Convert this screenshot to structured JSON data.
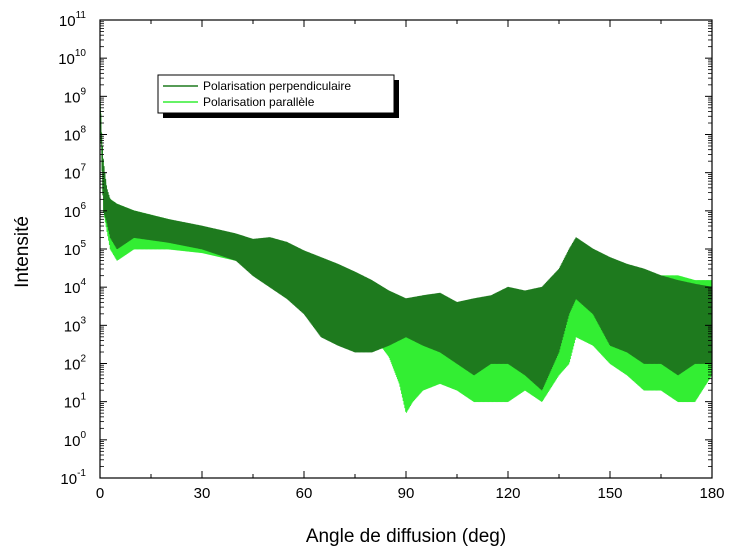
{
  "colors": {
    "perpendicular": "#1e7a1e",
    "parallel": "#33ee33",
    "axis": "#000000",
    "background": "#ffffff"
  },
  "chart_data": {
    "type": "line",
    "title": "",
    "xlabel": "Angle de diffusion (deg)",
    "ylabel": "Intensité",
    "xlim": [
      0,
      180
    ],
    "ylim": [
      0.1,
      100000000000
    ],
    "yscale": "log",
    "grid": false,
    "legend_position": "top-left",
    "x_ticks": [
      {
        "value": 0,
        "label": "0"
      },
      {
        "value": 30,
        "label": "30"
      },
      {
        "value": 60,
        "label": "60"
      },
      {
        "value": 90,
        "label": "90"
      },
      {
        "value": 120,
        "label": "120"
      },
      {
        "value": 150,
        "label": "150"
      },
      {
        "value": 180,
        "label": "180"
      }
    ],
    "y_ticks": [
      {
        "value": 0.1,
        "base": "10",
        "exp": "-1"
      },
      {
        "value": 1,
        "base": "10",
        "exp": "0"
      },
      {
        "value": 10,
        "base": "10",
        "exp": "1"
      },
      {
        "value": 100,
        "base": "10",
        "exp": "2"
      },
      {
        "value": 1000,
        "base": "10",
        "exp": "3"
      },
      {
        "value": 10000,
        "base": "10",
        "exp": "4"
      },
      {
        "value": 100000,
        "base": "10",
        "exp": "5"
      },
      {
        "value": 1000000,
        "base": "10",
        "exp": "6"
      },
      {
        "value": 10000000,
        "base": "10",
        "exp": "7"
      },
      {
        "value": 100000000,
        "base": "10",
        "exp": "8"
      },
      {
        "value": 1000000000,
        "base": "10",
        "exp": "9"
      },
      {
        "value": 10000000000,
        "base": "10",
        "exp": "10"
      },
      {
        "value": 100000000000,
        "base": "10",
        "exp": "11"
      }
    ],
    "series": [
      {
        "name": "Polarisation perpendiculaire",
        "color": "#1e7a1e",
        "x": [
          0,
          0.5,
          1,
          2,
          3,
          5,
          10,
          20,
          30,
          40,
          45,
          50,
          55,
          60,
          65,
          70,
          75,
          80,
          85,
          90,
          95,
          100,
          105,
          110,
          115,
          120,
          125,
          130,
          135,
          138,
          140,
          145,
          150,
          155,
          160,
          165,
          170,
          175,
          180
        ],
        "y": [
          1000000000,
          100000000,
          20000000,
          4000000,
          2000000,
          1500000,
          1000000,
          600000,
          400000,
          250000,
          180000,
          200000,
          150000,
          90000,
          60000,
          40000,
          25000,
          15000,
          8000,
          5000,
          6000,
          7000,
          4000,
          5000,
          6000,
          10000,
          8000,
          10000,
          30000,
          100000,
          200000,
          100000,
          60000,
          40000,
          30000,
          20000,
          15000,
          12000,
          10000
        ],
        "min": [
          1000000000,
          20000000,
          1000000,
          500000,
          200000,
          100000,
          200000,
          150000,
          100000,
          50000,
          20000,
          10000,
          5000,
          2000,
          500,
          300,
          200,
          200,
          300,
          500,
          300,
          200,
          100,
          50,
          100,
          100,
          50,
          20,
          200,
          2000,
          5000,
          2000,
          300,
          200,
          100,
          100,
          50,
          100,
          100
        ]
      },
      {
        "name": "Polarisation parallèle",
        "color": "#33ee33",
        "x": [
          0,
          0.5,
          1,
          2,
          3,
          5,
          10,
          20,
          30,
          40,
          45,
          50,
          55,
          60,
          65,
          70,
          75,
          80,
          85,
          88,
          90,
          92,
          95,
          100,
          105,
          110,
          115,
          120,
          125,
          130,
          135,
          138,
          140,
          145,
          150,
          155,
          160,
          165,
          170,
          175,
          180
        ],
        "y": [
          1000000000,
          100000000,
          20000000,
          3000000,
          2000000,
          1500000,
          1000000,
          600000,
          350000,
          200000,
          130000,
          80000,
          50000,
          30000,
          20000,
          15000,
          10000,
          5000,
          2000,
          800,
          700,
          900,
          1000,
          1500,
          2000,
          3000,
          5000,
          8000,
          6000,
          4000,
          10000,
          20000,
          40000,
          30000,
          30000,
          25000,
          25000,
          20000,
          20000,
          15000,
          15000
        ],
        "min": [
          1000000000,
          20000000,
          1000000,
          300000,
          100000,
          50000,
          100000,
          100000,
          80000,
          50000,
          30000,
          20000,
          15000,
          10000,
          8000,
          5000,
          2000,
          600,
          150,
          30,
          5,
          10,
          20,
          30,
          20,
          10,
          10,
          10,
          20,
          10,
          50,
          100,
          500,
          300,
          100,
          50,
          20,
          20,
          10,
          10,
          50
        ]
      }
    ]
  }
}
